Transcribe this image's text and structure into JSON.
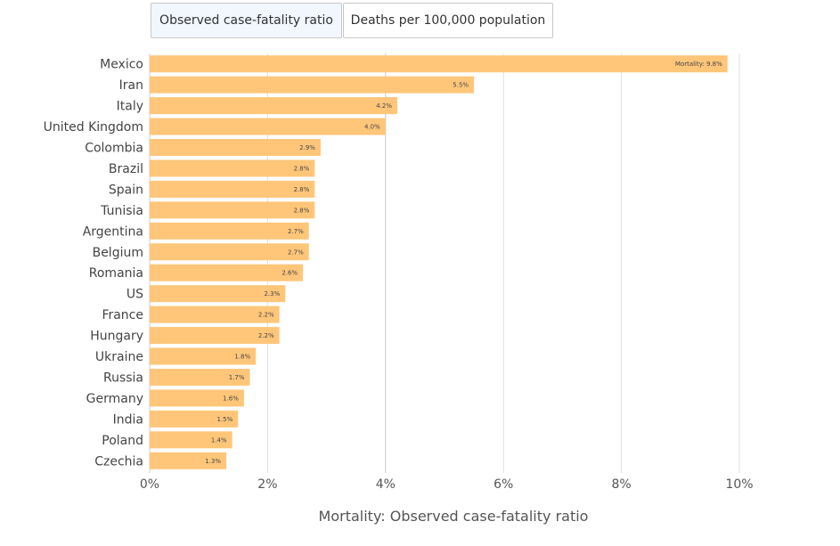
{
  "tabs": [
    {
      "label": "Observed case-fatality ratio",
      "active": true
    },
    {
      "label": "Deaths per 100,000 population",
      "active": false
    }
  ],
  "chart_data": {
    "type": "bar",
    "orientation": "horizontal",
    "title": "",
    "xlabel": "Mortality: Observed case-fatality ratio",
    "ylabel": "",
    "xlim": [
      0,
      10
    ],
    "xticks": [
      0,
      2,
      4,
      6,
      8,
      10
    ],
    "xtick_labels": [
      "0%",
      "2%",
      "4%",
      "6%",
      "8%",
      "10%"
    ],
    "grid": true,
    "bar_color": "#ffc67a",
    "categories": [
      "Mexico",
      "Iran",
      "Italy",
      "United Kingdom",
      "Colombia",
      "Brazil",
      "Spain",
      "Tunisia",
      "Argentina",
      "Belgium",
      "Romania",
      "US",
      "France",
      "Hungary",
      "Ukraine",
      "Russia",
      "Germany",
      "India",
      "Poland",
      "Czechia"
    ],
    "values": [
      9.8,
      5.5,
      4.2,
      4.0,
      2.9,
      2.8,
      2.8,
      2.8,
      2.7,
      2.7,
      2.6,
      2.3,
      2.2,
      2.2,
      1.8,
      1.7,
      1.6,
      1.5,
      1.4,
      1.3
    ],
    "labels": [
      "Mortality: 9.8%",
      "5.5%",
      "4.2%",
      "4.0%",
      "2.9%",
      "2.8%",
      "2.8%",
      "2.8%",
      "2.7%",
      "2.7%",
      "2.6%",
      "2.3%",
      "2.2%",
      "2.2%",
      "1.8%",
      "1.7%",
      "1.6%",
      "1.5%",
      "1.4%",
      "1.3%"
    ]
  }
}
